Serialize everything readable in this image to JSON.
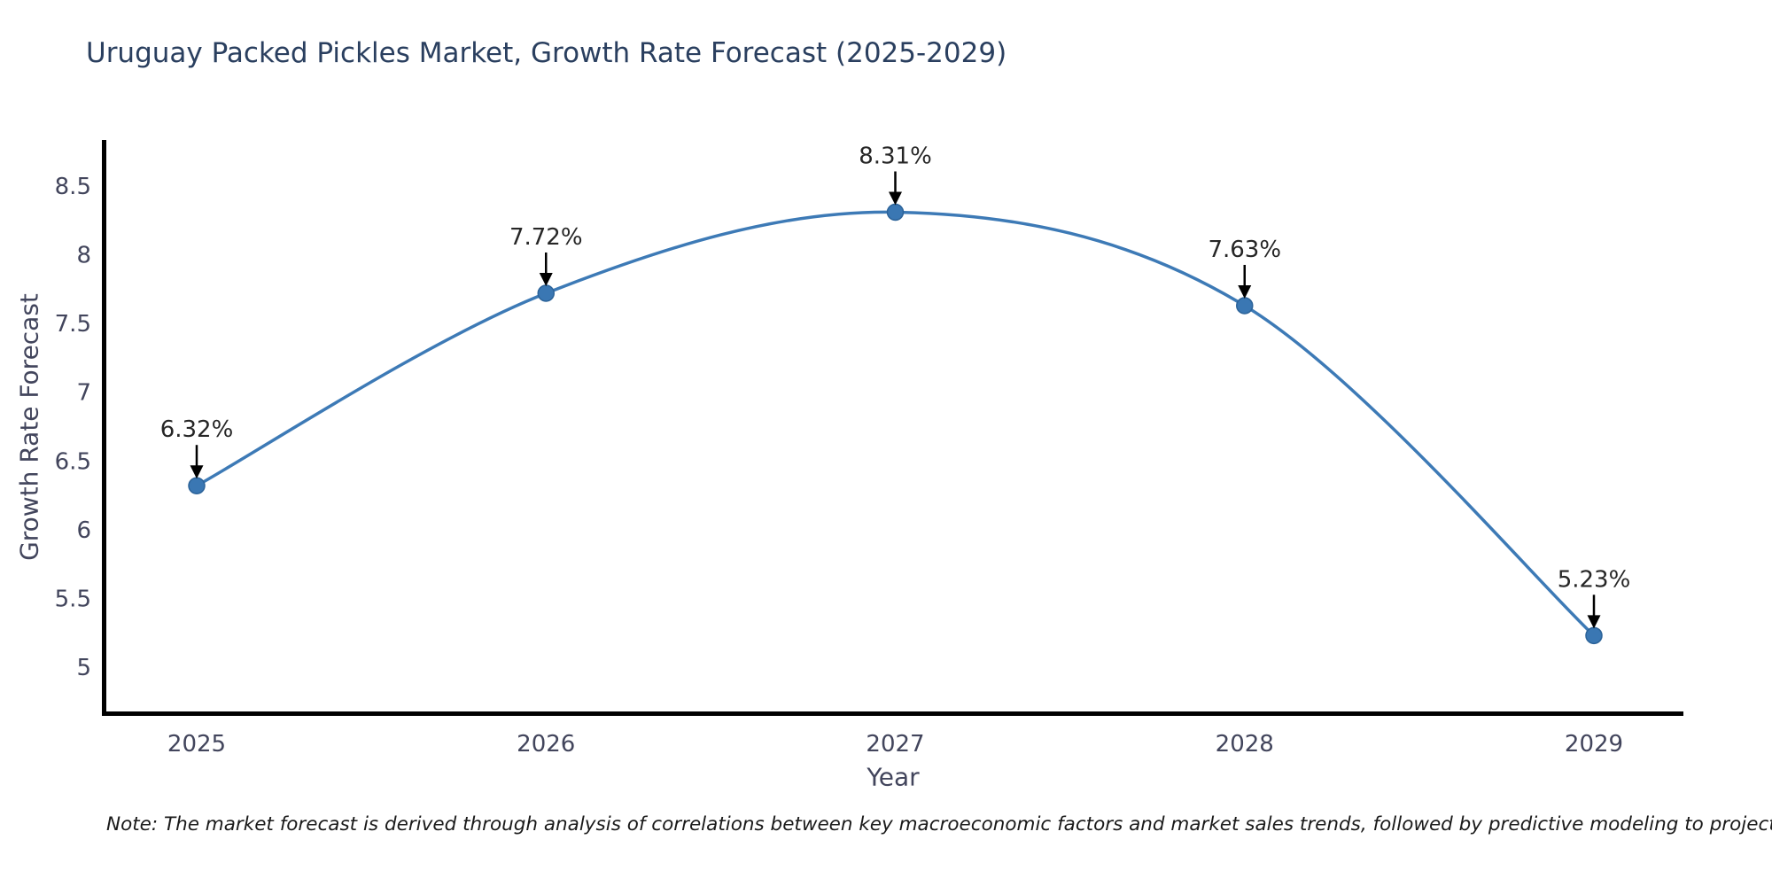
{
  "title": "Uruguay Packed Pickles Market, Growth Rate Forecast (2025-2029)",
  "y_axis_label": "Growth Rate Forecast",
  "x_axis_label": "Year",
  "note": "Note: The market forecast is derived through analysis of correlations between key macroeconomic factors and market sales trends, followed by predictive modeling to project future sales",
  "colors": {
    "line": "#3d7ab6",
    "marker_fill": "#3a77b3",
    "marker_edge": "#2c6399",
    "title_text": "#2a3f5f",
    "axis_text": "#42455c",
    "annotation_text": "#262626",
    "arrow": "#000000",
    "spine": "#000000",
    "background": "#ffffff"
  },
  "chart_data": {
    "type": "line",
    "line_shape": "spline",
    "marker": "circle",
    "title": "Uruguay Packed Pickles Market, Growth Rate Forecast (2025-2029)",
    "xlabel": "Year",
    "ylabel": "Growth Rate Forecast",
    "categories": [
      "2025",
      "2026",
      "2027",
      "2028",
      "2029"
    ],
    "x": [
      2025,
      2026,
      2027,
      2028,
      2029
    ],
    "values": [
      6.32,
      7.72,
      8.31,
      7.63,
      5.23
    ],
    "point_labels": [
      "6.32%",
      "7.72%",
      "8.31%",
      "7.63%",
      "5.23%"
    ],
    "yticks": [
      5,
      5.5,
      6,
      6.5,
      7,
      7.5,
      8,
      8.5
    ],
    "ytick_labels": [
      "5",
      "5.5",
      "6",
      "6.5",
      "7",
      "7.5",
      "8",
      "8.5"
    ],
    "ylim": [
      4.67,
      8.82
    ],
    "grid": false,
    "legend": false
  }
}
